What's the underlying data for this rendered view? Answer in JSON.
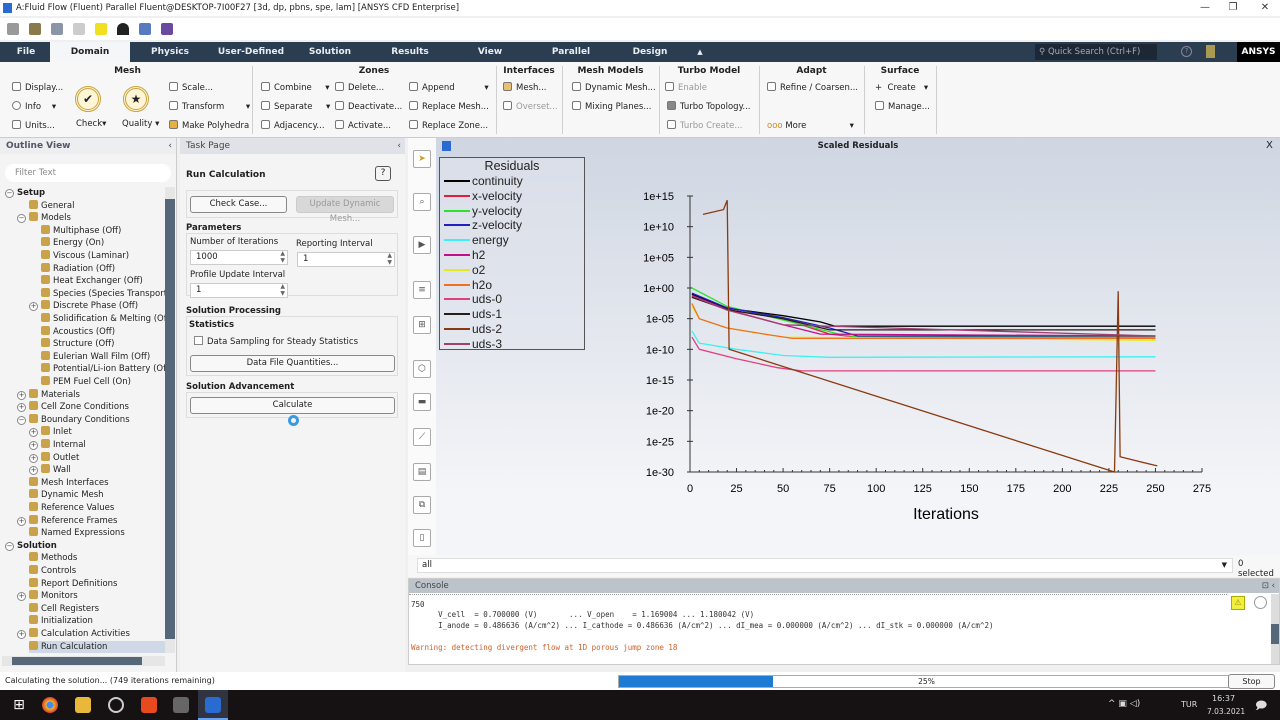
{
  "window": {
    "title": "A:Fluid Flow (Fluent) Parallel Fluent@DESKTOP-7I00F27  [3d, dp, pbns, spe, lam] [ANSYS CFD Enterprise]",
    "minimize": "—",
    "maximize": "❐",
    "close": "✕"
  },
  "ribbon": {
    "tabs": [
      "File",
      "Domain",
      "Physics",
      "User-Defined",
      "Solution",
      "Results",
      "View",
      "Parallel",
      "Design"
    ],
    "active_tab": "Domain",
    "quick_search_placeholder": "Quick Search (Ctrl+F)",
    "brand": "ANSYS",
    "groups": {
      "mesh": {
        "title": "Mesh",
        "display": "Display...",
        "info": "Info",
        "units": "Units...",
        "check": "Check",
        "quality": "Quality",
        "scale": "Scale...",
        "transform": "Transform",
        "make_polyhedra": "Make Polyhedra"
      },
      "zones": {
        "title": "Zones",
        "combine": "Combine",
        "separate": "Separate",
        "adjacency": "Adjacency...",
        "delete": "Delete...",
        "deactivate": "Deactivate...",
        "activate": "Activate...",
        "append": "Append",
        "replace_mesh": "Replace Mesh...",
        "replace_zone": "Replace Zone..."
      },
      "interfaces": {
        "title": "Interfaces",
        "mesh": "Mesh...",
        "overset": "Overset..."
      },
      "mesh_models": {
        "title": "Mesh Models",
        "dynamic_mesh": "Dynamic Mesh...",
        "mixing_planes": "Mixing Planes..."
      },
      "turbo_model": {
        "title": "Turbo Model",
        "enable": "Enable",
        "turbo_topology": "Turbo Topology...",
        "turbo_create": "Turbo Create..."
      },
      "adapt": {
        "title": "Adapt",
        "refine": "Refine / Coarsen...",
        "more": "More"
      },
      "surface": {
        "title": "Surface",
        "create": "Create",
        "manage": "Manage..."
      }
    }
  },
  "outline": {
    "title": "Outline View",
    "filter_placeholder": "Filter Text",
    "items": [
      {
        "label": "Setup",
        "level": 0,
        "exp": "-",
        "bold": true
      },
      {
        "label": "General",
        "level": 2,
        "exp": ""
      },
      {
        "label": "Models",
        "level": 1,
        "exp": "-"
      },
      {
        "label": "Multiphase (Off)",
        "level": 3,
        "exp": ""
      },
      {
        "label": "Energy (On)",
        "level": 3,
        "exp": ""
      },
      {
        "label": "Viscous (Laminar)",
        "level": 3,
        "exp": ""
      },
      {
        "label": "Radiation (Off)",
        "level": 3,
        "exp": ""
      },
      {
        "label": "Heat Exchanger (Off)",
        "level": 3,
        "exp": ""
      },
      {
        "label": "Species (Species Transport)",
        "level": 3,
        "exp": ""
      },
      {
        "label": "Discrete Phase (Off)",
        "level": 2,
        "exp": "+"
      },
      {
        "label": "Solidification & Melting (Off)",
        "level": 3,
        "exp": ""
      },
      {
        "label": "Acoustics (Off)",
        "level": 3,
        "exp": ""
      },
      {
        "label": "Structure (Off)",
        "level": 3,
        "exp": ""
      },
      {
        "label": "Eulerian Wall Film (Off)",
        "level": 3,
        "exp": ""
      },
      {
        "label": "Potential/Li-ion Battery (Off)",
        "level": 3,
        "exp": ""
      },
      {
        "label": "PEM Fuel Cell (On)",
        "level": 3,
        "exp": ""
      },
      {
        "label": "Materials",
        "level": 1,
        "exp": "+"
      },
      {
        "label": "Cell Zone Conditions",
        "level": 1,
        "exp": "+"
      },
      {
        "label": "Boundary Conditions",
        "level": 1,
        "exp": "-"
      },
      {
        "label": "Inlet",
        "level": 2,
        "exp": "+"
      },
      {
        "label": "Internal",
        "level": 2,
        "exp": "+"
      },
      {
        "label": "Outlet",
        "level": 2,
        "exp": "+"
      },
      {
        "label": "Wall",
        "level": 2,
        "exp": "+"
      },
      {
        "label": "Mesh Interfaces",
        "level": 2,
        "exp": ""
      },
      {
        "label": "Dynamic Mesh",
        "level": 2,
        "exp": ""
      },
      {
        "label": "Reference Values",
        "level": 2,
        "exp": ""
      },
      {
        "label": "Reference Frames",
        "level": 1,
        "exp": "+"
      },
      {
        "label": "Named Expressions",
        "level": 2,
        "exp": ""
      },
      {
        "label": "Solution",
        "level": 0,
        "exp": "-",
        "bold": true
      },
      {
        "label": "Methods",
        "level": 2,
        "exp": ""
      },
      {
        "label": "Controls",
        "level": 2,
        "exp": ""
      },
      {
        "label": "Report Definitions",
        "level": 2,
        "exp": ""
      },
      {
        "label": "Monitors",
        "level": 1,
        "exp": "+"
      },
      {
        "label": "Cell Registers",
        "level": 2,
        "exp": ""
      },
      {
        "label": "Initialization",
        "level": 2,
        "exp": ""
      },
      {
        "label": "Calculation Activities",
        "level": 1,
        "exp": "+"
      },
      {
        "label": "Run Calculation",
        "level": 2,
        "exp": "",
        "selected": true
      }
    ]
  },
  "task_page": {
    "title": "Task Page",
    "heading": "Run Calculation",
    "help": "?",
    "check_case": "Check Case...",
    "update_dynamic_mesh": "Update Dynamic Mesh...",
    "parameters": "Parameters",
    "num_iterations_label": "Number of Iterations",
    "num_iterations": "1000",
    "reporting_interval_label": "Reporting Interval",
    "reporting_interval": "1",
    "profile_update_label": "Profile Update Interval",
    "profile_update": "1",
    "solution_processing": "Solution Processing",
    "statistics": "Statistics",
    "data_sampling": "Data Sampling for Steady Statistics",
    "data_sampling_checked": false,
    "data_file_quantities": "Data File Quantities...",
    "solution_advancement": "Solution Advancement",
    "calculate": "Calculate"
  },
  "graphics": {
    "title": "Scaled Residuals",
    "close": "X",
    "filter_value": "all",
    "selected_count": "0 selected"
  },
  "chart_data": {
    "type": "line",
    "title": "",
    "legend_title": "Residuals",
    "legend_position": "top-left",
    "xlabel": "Iterations",
    "ylabel": "",
    "xlim": [
      0,
      275
    ],
    "ylim": [
      1e-30,
      1000000000000000.0
    ],
    "yscale": "log",
    "xticks": [
      "0",
      "25",
      "50",
      "75",
      "100",
      "125",
      "150",
      "175",
      "200",
      "225",
      "250",
      "275"
    ],
    "yticks": [
      "1e+15",
      "1e+10",
      "1e+05",
      "1e+00",
      "1e-05",
      "1e-10",
      "1e-15",
      "1e-20",
      "1e-25",
      "1e-30"
    ],
    "series": [
      {
        "name": "continuity",
        "color": "#000000",
        "x": [
          1,
          20,
          50,
          70,
          78,
          250
        ],
        "y": [
          0.1,
          0.0005,
          3e-05,
          3e-06,
          6e-07,
          6e-07
        ]
      },
      {
        "name": "x-velocity",
        "color": "#e0203a",
        "x": [
          1,
          20,
          50,
          75,
          90,
          250
        ],
        "y": [
          0.03,
          0.0003,
          1e-05,
          3e-08,
          1e-08,
          1e-08
        ]
      },
      {
        "name": "y-velocity",
        "color": "#30e030",
        "x": [
          1,
          20,
          50,
          80,
          90,
          250
        ],
        "y": [
          1,
          0.001,
          6e-06,
          3e-08,
          1e-08,
          1e-08
        ]
      },
      {
        "name": "z-velocity",
        "color": "#2020c0",
        "x": [
          1,
          20,
          50,
          75,
          90,
          250
        ],
        "y": [
          0.15,
          0.0006,
          1.5e-05,
          3e-07,
          1.5e-08,
          1.5e-08
        ]
      },
      {
        "name": "energy",
        "color": "#40f0f0",
        "x": [
          1,
          5,
          25,
          50,
          75,
          250
        ],
        "y": [
          1e-07,
          1e-09,
          1e-10,
          1e-11,
          5e-12,
          6e-12
        ]
      },
      {
        "name": "h2",
        "color": "#c0108a",
        "x": [
          1,
          20,
          50,
          70,
          250
        ],
        "y": [
          0.06,
          0.0003,
          1e-06,
          3e-08,
          1.5e-08
        ]
      },
      {
        "name": "o2",
        "color": "#e8e820",
        "x": [
          1,
          5,
          20,
          50,
          250
        ],
        "y": [
          0.001,
          1e-05,
          3e-07,
          1e-08,
          3e-09
        ]
      },
      {
        "name": "h2o",
        "color": "#f07020",
        "x": [
          1,
          5,
          20,
          40,
          55,
          250
        ],
        "y": [
          0.003,
          1e-05,
          3e-07,
          3e-08,
          6e-09,
          6e-09
        ]
      },
      {
        "name": "uds-0",
        "color": "#e04080",
        "x": [
          1,
          5,
          25,
          47,
          60,
          250
        ],
        "y": [
          1e-08,
          1e-10,
          3e-12,
          1e-13,
          3e-14,
          3e-14
        ]
      },
      {
        "name": "uds-1",
        "color": "#2a1a1a",
        "x": [
          1,
          20,
          50,
          75,
          250
        ],
        "y": [
          0.03,
          0.0003,
          1e-05,
          1.5e-07,
          1.5e-07
        ]
      },
      {
        "name": "uds-2",
        "color": "#8a3a10",
        "x": [
          7,
          18,
          20,
          21,
          228,
          230,
          231,
          251
        ],
        "y": [
          1000000000000.0,
          6000000000000.0,
          200000000000000.0,
          1e-10,
          1e-30,
          0.3,
          3e-28,
          1e-29
        ]
      },
      {
        "name": "uds-3",
        "color": "#a04070",
        "x": [
          1,
          20,
          50,
          250
        ],
        "y": [
          0.05,
          0.00025,
          1e-06,
          1.5e-08
        ]
      }
    ]
  },
  "console": {
    "title": "Console",
    "lines": [
      "750",
      "      V_cell  = 0.700000 (V)       ... V_open    = 1.169004 ... 1.180042 (V)",
      "      I_anode = 0.486636 (A/cm^2) ... I_cathode = 0.486636 (A/cm^2) ... dI_mea = 0.000000 (A/cm^2) ... dI_stk = 0.000000 (A/cm^2)"
    ],
    "warning": "Warning: detecting divergent flow at 1D porous jump zone 18"
  },
  "status": {
    "message": "Calculating the solution... (749 iterations remaining)",
    "progress_percent": 25,
    "progress_label": "25%",
    "stop": "Stop"
  },
  "taskbar": {
    "language": "TUR",
    "time": "16:37",
    "date": "7.03.2021",
    "notifications": "1"
  }
}
